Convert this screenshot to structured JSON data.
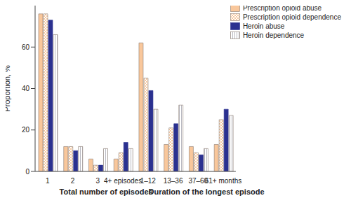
{
  "chart_data": {
    "type": "bar",
    "y_label": "Proportion, %",
    "x_groups": [
      "Total number of episodes",
      "Duration of the longest episode"
    ],
    "categories": [
      "1",
      "2",
      "3",
      "4+ episodes",
      "1–12",
      "13–36",
      "37–60",
      "61+ months"
    ],
    "series": [
      {
        "name": "Prescription opioid abuse",
        "color": "#f9c79b",
        "values": [
          76,
          12,
          6,
          6,
          62,
          13,
          12,
          13
        ]
      },
      {
        "name": "Prescription opioid dependence",
        "color": "#f6c8a0",
        "values": [
          76,
          12,
          3,
          9,
          45,
          21,
          9,
          25
        ]
      },
      {
        "name": "Heroin abuse",
        "color": "#2b3190",
        "values": [
          73,
          10,
          3,
          14,
          39,
          23,
          8,
          30
        ]
      },
      {
        "name": "Heroin dependence",
        "color": "#b8b8c0",
        "values": [
          66,
          12,
          11,
          11,
          30,
          32,
          11,
          27
        ]
      }
    ],
    "ylim": [
      0,
      80
    ],
    "yticks": [
      0,
      20,
      40,
      60
    ],
    "grid": false,
    "legend": "upper right"
  }
}
